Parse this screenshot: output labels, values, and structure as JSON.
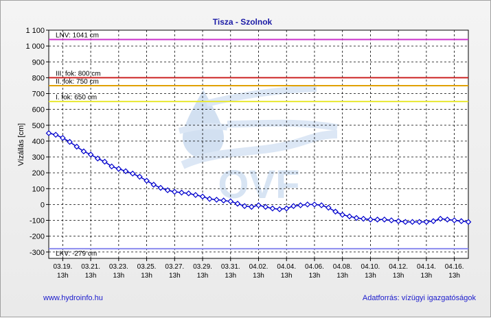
{
  "chart_data": {
    "type": "line",
    "title": "Tisza - Szolnok",
    "ylabel": "Vízállás [cm]",
    "xlabel": "",
    "ylim": [
      -340,
      1100
    ],
    "yticks": [
      1100,
      1000,
      900,
      800,
      700,
      600,
      500,
      400,
      300,
      200,
      100,
      0,
      -100,
      -200,
      -300
    ],
    "ytick_labels": [
      "1 100",
      "1 000",
      "900",
      "800",
      "700",
      "600",
      "500",
      "400",
      "300",
      "200",
      "100",
      "0",
      "-100",
      "-200",
      "-300"
    ],
    "xlim": [
      0,
      30
    ],
    "xticks": [
      {
        "x": 1,
        "date": "03.19.",
        "hour": "13h"
      },
      {
        "x": 3,
        "date": "03.21.",
        "hour": "13h"
      },
      {
        "x": 5,
        "date": "03.23.",
        "hour": "13h"
      },
      {
        "x": 7,
        "date": "03.25.",
        "hour": "13h"
      },
      {
        "x": 9,
        "date": "03.27.",
        "hour": "13h"
      },
      {
        "x": 11,
        "date": "03.29.",
        "hour": "13h"
      },
      {
        "x": 13,
        "date": "03.31.",
        "hour": "13h"
      },
      {
        "x": 15,
        "date": "04.02.",
        "hour": "13h"
      },
      {
        "x": 17,
        "date": "04.04.",
        "hour": "13h"
      },
      {
        "x": 19,
        "date": "04.06.",
        "hour": "13h"
      },
      {
        "x": 21,
        "date": "04.08.",
        "hour": "13h"
      },
      {
        "x": 23,
        "date": "04.10.",
        "hour": "13h"
      },
      {
        "x": 25,
        "date": "04.12.",
        "hour": "13h"
      },
      {
        "x": 27,
        "date": "04.14.",
        "hour": "13h"
      },
      {
        "x": 29,
        "date": "04.16.",
        "hour": "13h"
      }
    ],
    "grid": true,
    "reference_lines": [
      {
        "label": "LNV: 1041 cm",
        "value": 1041,
        "color": "#cc33cc"
      },
      {
        "label": "III. fok: 800 cm",
        "value": 800,
        "color": "#cc2222"
      },
      {
        "label": "II. fok: 750 cm",
        "value": 750,
        "color": "#e0a000"
      },
      {
        "label": "I. fok: 650 cm",
        "value": 650,
        "color": "#e8e830"
      },
      {
        "label": "LKV: -279 cm",
        "value": -279,
        "color": "#8888ee"
      }
    ],
    "series": [
      {
        "color": "#0000cc",
        "marker": "diamond",
        "points": [
          [
            0,
            450
          ],
          [
            0.5,
            440
          ],
          [
            1,
            420
          ],
          [
            1.5,
            395
          ],
          [
            2,
            365
          ],
          [
            2.5,
            335
          ],
          [
            3,
            315
          ],
          [
            3.5,
            290
          ],
          [
            4,
            270
          ],
          [
            4.5,
            240
          ],
          [
            5,
            225
          ],
          [
            5.5,
            210
          ],
          [
            6,
            195
          ],
          [
            6.5,
            175
          ],
          [
            7,
            150
          ],
          [
            7.5,
            125
          ],
          [
            8,
            105
          ],
          [
            8.5,
            90
          ],
          [
            9,
            80
          ],
          [
            9.5,
            75
          ],
          [
            10,
            70
          ],
          [
            10.5,
            60
          ],
          [
            11,
            50
          ],
          [
            11.5,
            35
          ],
          [
            12,
            30
          ],
          [
            12.5,
            25
          ],
          [
            13,
            20
          ],
          [
            13.5,
            5
          ],
          [
            14,
            -10
          ],
          [
            14.5,
            -15
          ],
          [
            15,
            -5
          ],
          [
            15.5,
            -15
          ],
          [
            16,
            -25
          ],
          [
            16.5,
            -30
          ],
          [
            17,
            -25
          ],
          [
            17.5,
            -10
          ],
          [
            18,
            -5
          ],
          [
            18.5,
            0
          ],
          [
            19,
            0
          ],
          [
            19.5,
            -5
          ],
          [
            20,
            -20
          ],
          [
            20.5,
            -45
          ],
          [
            21,
            -65
          ],
          [
            21.5,
            -75
          ],
          [
            22,
            -85
          ],
          [
            22.5,
            -90
          ],
          [
            23,
            -95
          ],
          [
            23.5,
            -95
          ],
          [
            24,
            -95
          ],
          [
            24.5,
            -100
          ],
          [
            25,
            -105
          ],
          [
            25.5,
            -110
          ],
          [
            26,
            -110
          ],
          [
            26.5,
            -110
          ],
          [
            27,
            -110
          ],
          [
            27.5,
            -105
          ],
          [
            28,
            -90
          ],
          [
            28.5,
            -95
          ],
          [
            29,
            -100
          ],
          [
            29.5,
            -105
          ],
          [
            30,
            -110
          ]
        ]
      }
    ]
  },
  "footer": {
    "website": "www.hydroinfo.hu",
    "source": "Adatforrás: vízügyi igazgatóságok"
  },
  "watermark": {
    "text": "OVF",
    "color": "#a8c6e6"
  }
}
